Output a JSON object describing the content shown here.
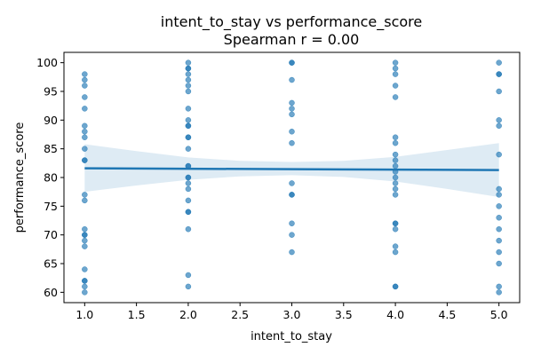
{
  "chart_data": {
    "type": "scatter",
    "title": "intent_to_stay vs performance_score",
    "subtitle": "Spearman r = 0.00",
    "xlabel": "intent_to_stay",
    "ylabel": "performance_score",
    "xlim": [
      0.8,
      5.2
    ],
    "ylim": [
      58.2,
      101.8
    ],
    "xticks": [
      "1.0",
      "1.5",
      "2.0",
      "2.5",
      "3.0",
      "3.5",
      "4.0",
      "4.5",
      "5.0"
    ],
    "yticks": [
      "60",
      "65",
      "70",
      "75",
      "80",
      "85",
      "90",
      "95",
      "100"
    ],
    "grid": false,
    "point_color": "#1f77b4",
    "points": [
      {
        "x": 1,
        "y": 98
      },
      {
        "x": 1,
        "y": 97
      },
      {
        "x": 1,
        "y": 96
      },
      {
        "x": 1,
        "y": 94
      },
      {
        "x": 1,
        "y": 92
      },
      {
        "x": 1,
        "y": 89
      },
      {
        "x": 1,
        "y": 88
      },
      {
        "x": 1,
        "y": 87
      },
      {
        "x": 1,
        "y": 85
      },
      {
        "x": 1,
        "y": 83
      },
      {
        "x": 1,
        "y": 83
      },
      {
        "x": 1,
        "y": 77
      },
      {
        "x": 1,
        "y": 76
      },
      {
        "x": 1,
        "y": 71
      },
      {
        "x": 1,
        "y": 70
      },
      {
        "x": 1,
        "y": 70
      },
      {
        "x": 1,
        "y": 69
      },
      {
        "x": 1,
        "y": 68
      },
      {
        "x": 1,
        "y": 64
      },
      {
        "x": 1,
        "y": 62
      },
      {
        "x": 1,
        "y": 62
      },
      {
        "x": 1,
        "y": 61
      },
      {
        "x": 1,
        "y": 60
      },
      {
        "x": 2,
        "y": 100
      },
      {
        "x": 2,
        "y": 99
      },
      {
        "x": 2,
        "y": 99
      },
      {
        "x": 2,
        "y": 98
      },
      {
        "x": 2,
        "y": 97
      },
      {
        "x": 2,
        "y": 96
      },
      {
        "x": 2,
        "y": 95
      },
      {
        "x": 2,
        "y": 92
      },
      {
        "x": 2,
        "y": 90
      },
      {
        "x": 2,
        "y": 89
      },
      {
        "x": 2,
        "y": 89
      },
      {
        "x": 2,
        "y": 87
      },
      {
        "x": 2,
        "y": 87
      },
      {
        "x": 2,
        "y": 85
      },
      {
        "x": 2,
        "y": 82
      },
      {
        "x": 2,
        "y": 82
      },
      {
        "x": 2,
        "y": 80
      },
      {
        "x": 2,
        "y": 80
      },
      {
        "x": 2,
        "y": 79
      },
      {
        "x": 2,
        "y": 78
      },
      {
        "x": 2,
        "y": 76
      },
      {
        "x": 2,
        "y": 74
      },
      {
        "x": 2,
        "y": 74
      },
      {
        "x": 2,
        "y": 71
      },
      {
        "x": 2,
        "y": 63
      },
      {
        "x": 2,
        "y": 61
      },
      {
        "x": 3,
        "y": 100
      },
      {
        "x": 3,
        "y": 100
      },
      {
        "x": 3,
        "y": 97
      },
      {
        "x": 3,
        "y": 93
      },
      {
        "x": 3,
        "y": 92
      },
      {
        "x": 3,
        "y": 91
      },
      {
        "x": 3,
        "y": 88
      },
      {
        "x": 3,
        "y": 86
      },
      {
        "x": 3,
        "y": 79
      },
      {
        "x": 3,
        "y": 77
      },
      {
        "x": 3,
        "y": 77
      },
      {
        "x": 3,
        "y": 72
      },
      {
        "x": 3,
        "y": 70
      },
      {
        "x": 3,
        "y": 67
      },
      {
        "x": 4,
        "y": 100
      },
      {
        "x": 4,
        "y": 99
      },
      {
        "x": 4,
        "y": 98
      },
      {
        "x": 4,
        "y": 96
      },
      {
        "x": 4,
        "y": 94
      },
      {
        "x": 4,
        "y": 87
      },
      {
        "x": 4,
        "y": 86
      },
      {
        "x": 4,
        "y": 84
      },
      {
        "x": 4,
        "y": 83
      },
      {
        "x": 4,
        "y": 82
      },
      {
        "x": 4,
        "y": 81
      },
      {
        "x": 4,
        "y": 80
      },
      {
        "x": 4,
        "y": 79
      },
      {
        "x": 4,
        "y": 78
      },
      {
        "x": 4,
        "y": 77
      },
      {
        "x": 4,
        "y": 72
      },
      {
        "x": 4,
        "y": 72
      },
      {
        "x": 4,
        "y": 71
      },
      {
        "x": 4,
        "y": 68
      },
      {
        "x": 4,
        "y": 67
      },
      {
        "x": 4,
        "y": 61
      },
      {
        "x": 4,
        "y": 61
      },
      {
        "x": 5,
        "y": 100
      },
      {
        "x": 5,
        "y": 98
      },
      {
        "x": 5,
        "y": 98
      },
      {
        "x": 5,
        "y": 95
      },
      {
        "x": 5,
        "y": 90
      },
      {
        "x": 5,
        "y": 89
      },
      {
        "x": 5,
        "y": 84
      },
      {
        "x": 5,
        "y": 78
      },
      {
        "x": 5,
        "y": 77
      },
      {
        "x": 5,
        "y": 75
      },
      {
        "x": 5,
        "y": 73
      },
      {
        "x": 5,
        "y": 71
      },
      {
        "x": 5,
        "y": 69
      },
      {
        "x": 5,
        "y": 67
      },
      {
        "x": 5,
        "y": 65
      },
      {
        "x": 5,
        "y": 61
      },
      {
        "x": 5,
        "y": 60
      }
    ],
    "regression": {
      "color": "#1f77b4",
      "band_color": "#1f77b4",
      "line": [
        [
          1,
          81.6
        ],
        [
          5,
          81.3
        ]
      ],
      "band_upper": [
        [
          1,
          85.8
        ],
        [
          1.5,
          84.6
        ],
        [
          2,
          83.5
        ],
        [
          2.5,
          82.9
        ],
        [
          3,
          82.7
        ],
        [
          3.5,
          82.9
        ],
        [
          4,
          83.6
        ],
        [
          4.5,
          84.8
        ],
        [
          5,
          86.0
        ]
      ],
      "band_lower": [
        [
          1,
          77.5
        ],
        [
          1.5,
          78.6
        ],
        [
          2,
          79.6
        ],
        [
          2.5,
          80.2
        ],
        [
          3,
          80.4
        ],
        [
          3.5,
          80.1
        ],
        [
          4,
          79.3
        ],
        [
          4.5,
          78.0
        ],
        [
          5,
          76.6
        ]
      ]
    }
  }
}
